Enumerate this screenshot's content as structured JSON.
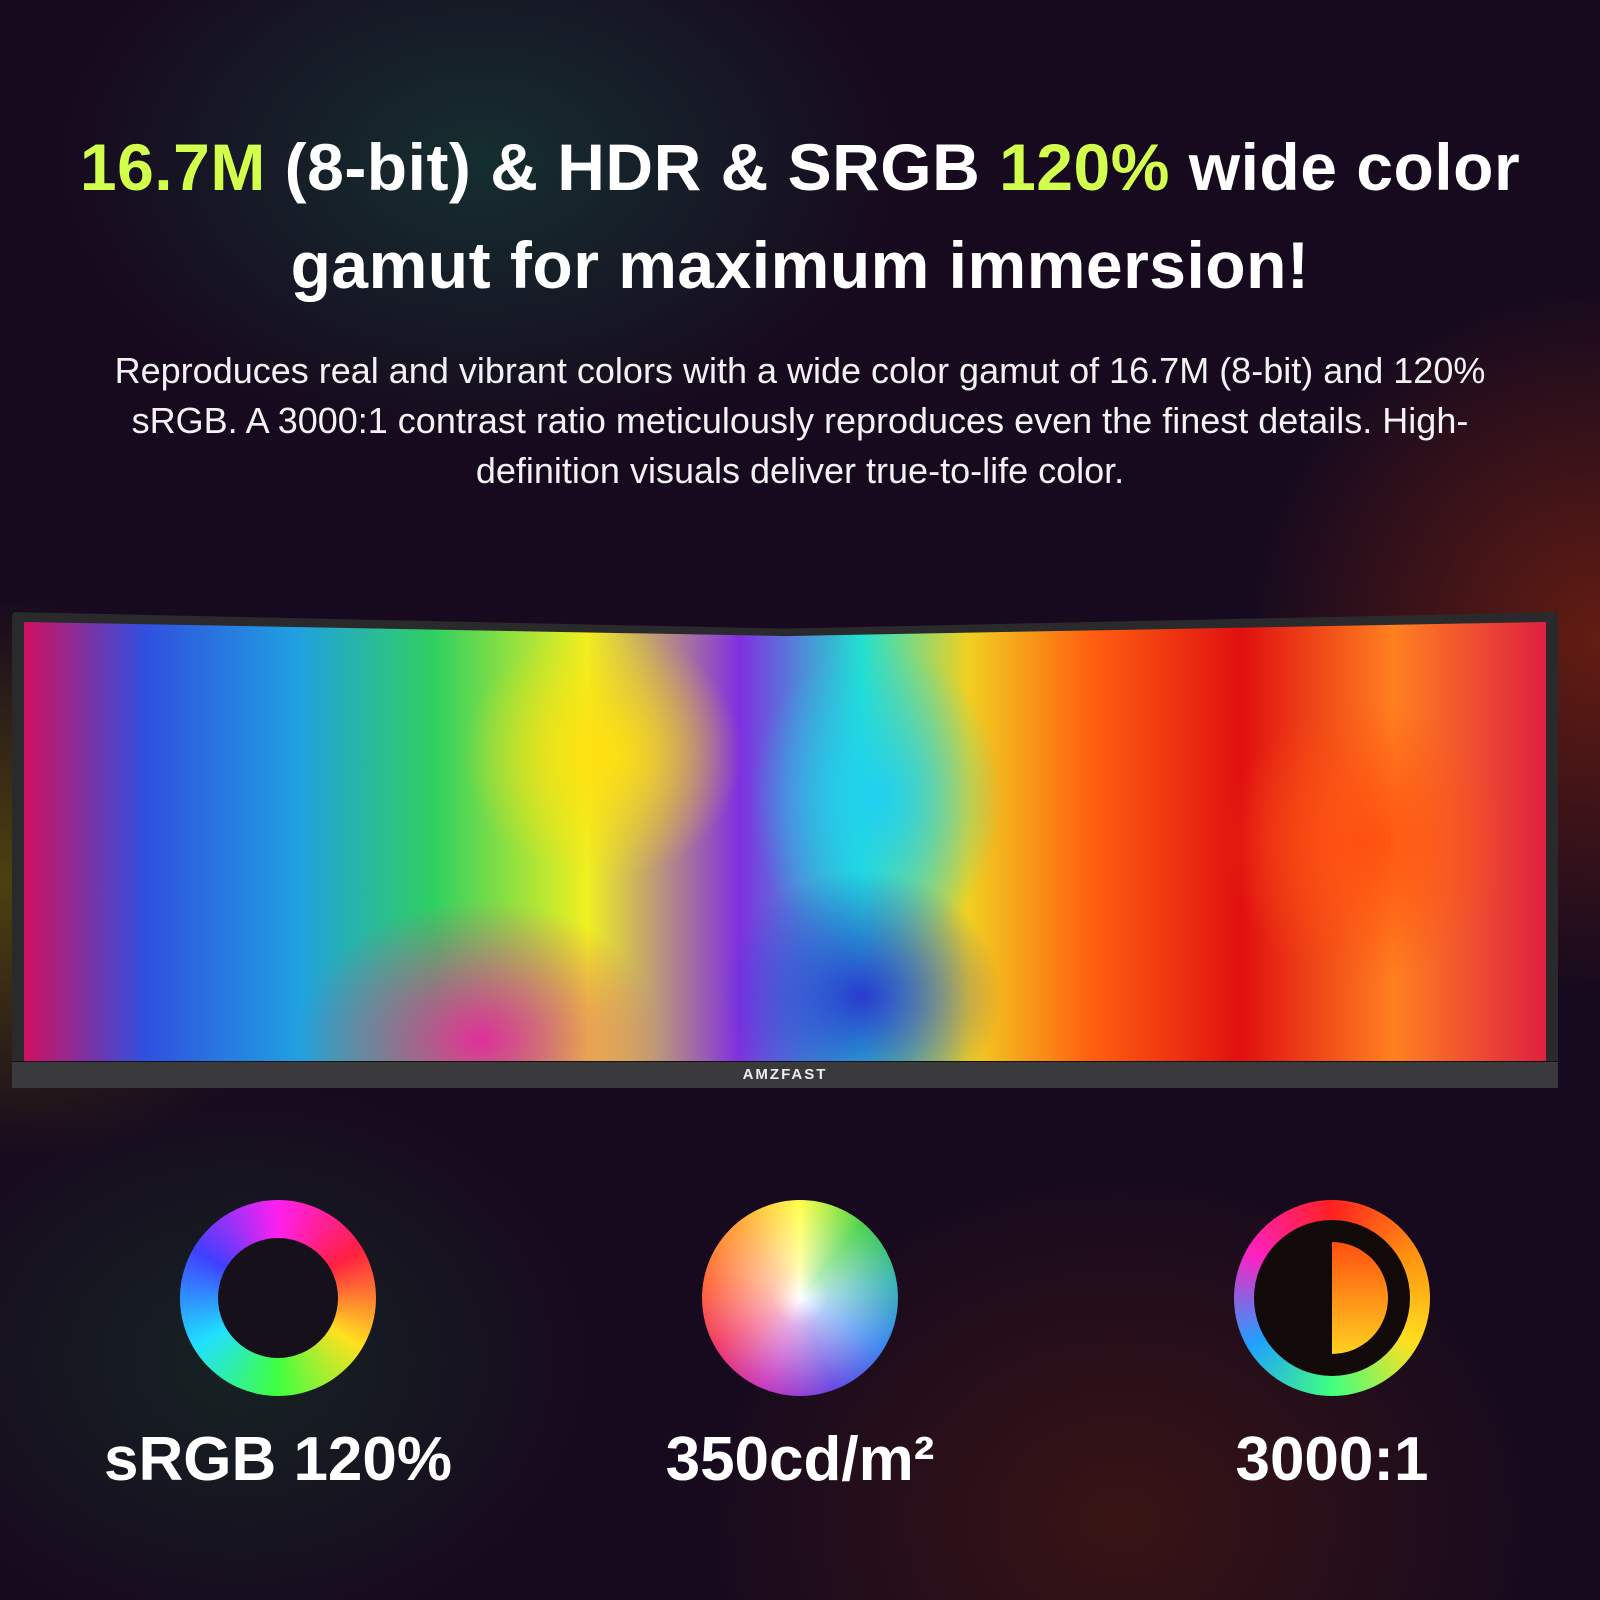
{
  "headline": {
    "part1_highlight": "16.7M",
    "part2": " (8-bit) & HDR & SRGB ",
    "part3_highlight": "120%",
    "part4": " wide color gamut for maximum immersion!",
    "highlight_color": "#d2ff4c"
  },
  "description": "Reproduces real and vibrant colors with a wide color gamut of 16.7M (8-bit) and 120% sRGB. A 3000:1 contrast ratio meticulously reproduces even the finest details. High-definition visuals deliver true-to-life color.",
  "monitor": {
    "brand": "AMZFAST"
  },
  "features": [
    {
      "icon": "color-ring-icon",
      "label": "sRGB 120%"
    },
    {
      "icon": "color-wheel-icon",
      "label": "350cd/m²"
    },
    {
      "icon": "contrast-icon",
      "label": "3000:1"
    }
  ]
}
